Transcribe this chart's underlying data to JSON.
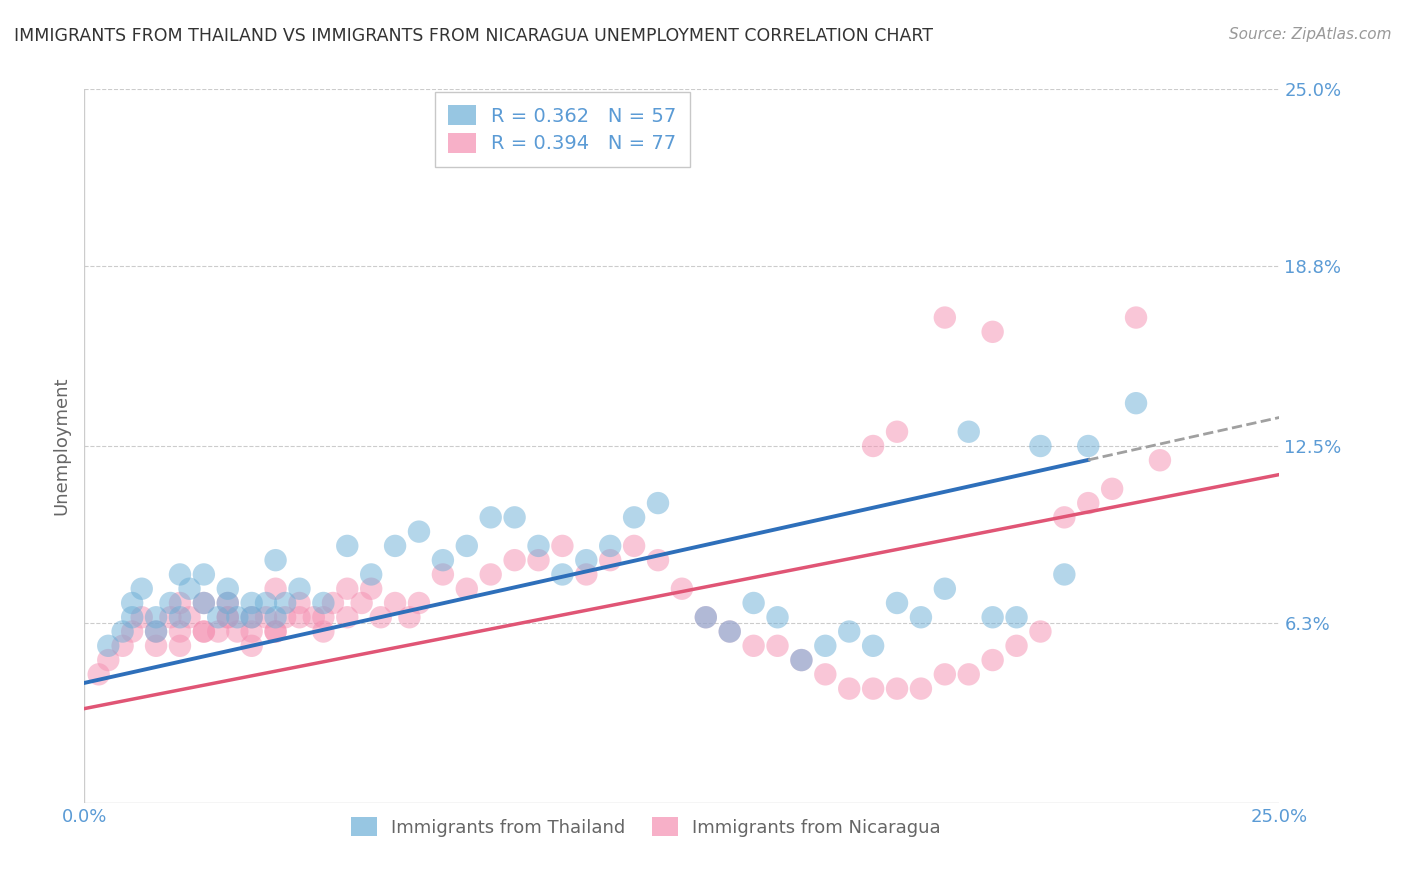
{
  "title": "IMMIGRANTS FROM THAILAND VS IMMIGRANTS FROM NICARAGUA UNEMPLOYMENT CORRELATION CHART",
  "source": "Source: ZipAtlas.com",
  "ylabel": "Unemployment",
  "series1_label": "Immigrants from Thailand",
  "series1_color": "#6baed6",
  "series1_R": "0.362",
  "series1_N": "57",
  "series2_label": "Immigrants from Nicaragua",
  "series2_color": "#f48fb1",
  "series2_R": "0.394",
  "series2_N": "77",
  "xmin": 0.0,
  "xmax": 0.25,
  "ymin": 0.0,
  "ymax": 0.25,
  "ytick_vals": [
    0.0,
    0.063,
    0.125,
    0.188,
    0.25
  ],
  "ytick_labels": [
    "",
    "6.3%",
    "12.5%",
    "18.8%",
    "25.0%"
  ],
  "xtick_vals": [
    0.0,
    0.25
  ],
  "xtick_labels": [
    "0.0%",
    "25.0%"
  ],
  "background_color": "#ffffff",
  "grid_color": "#cccccc",
  "title_color": "#333333",
  "axis_label_color": "#666666",
  "tick_label_color": "#5b9bd5",
  "legend_r_color": "#5b9bd5",
  "series1_scatter_x": [
    0.005,
    0.008,
    0.01,
    0.01,
    0.012,
    0.015,
    0.015,
    0.018,
    0.02,
    0.02,
    0.022,
    0.025,
    0.025,
    0.028,
    0.03,
    0.03,
    0.032,
    0.035,
    0.035,
    0.038,
    0.04,
    0.04,
    0.042,
    0.045,
    0.05,
    0.055,
    0.06,
    0.065,
    0.07,
    0.075,
    0.08,
    0.085,
    0.09,
    0.095,
    0.1,
    0.105,
    0.11,
    0.115,
    0.12,
    0.13,
    0.135,
    0.14,
    0.145,
    0.15,
    0.155,
    0.16,
    0.165,
    0.17,
    0.175,
    0.18,
    0.185,
    0.19,
    0.195,
    0.2,
    0.205,
    0.21,
    0.22
  ],
  "series1_scatter_y": [
    0.055,
    0.06,
    0.065,
    0.07,
    0.075,
    0.06,
    0.065,
    0.07,
    0.065,
    0.08,
    0.075,
    0.07,
    0.08,
    0.065,
    0.07,
    0.075,
    0.065,
    0.07,
    0.065,
    0.07,
    0.065,
    0.085,
    0.07,
    0.075,
    0.07,
    0.09,
    0.08,
    0.09,
    0.095,
    0.085,
    0.09,
    0.1,
    0.1,
    0.09,
    0.08,
    0.085,
    0.09,
    0.1,
    0.105,
    0.065,
    0.06,
    0.07,
    0.065,
    0.05,
    0.055,
    0.06,
    0.055,
    0.07,
    0.065,
    0.075,
    0.13,
    0.065,
    0.065,
    0.125,
    0.08,
    0.125,
    0.14
  ],
  "series2_scatter_x": [
    0.003,
    0.005,
    0.008,
    0.01,
    0.012,
    0.015,
    0.015,
    0.018,
    0.02,
    0.02,
    0.022,
    0.025,
    0.025,
    0.028,
    0.03,
    0.03,
    0.032,
    0.035,
    0.035,
    0.038,
    0.04,
    0.04,
    0.042,
    0.045,
    0.048,
    0.05,
    0.052,
    0.055,
    0.058,
    0.06,
    0.062,
    0.065,
    0.068,
    0.07,
    0.075,
    0.08,
    0.085,
    0.09,
    0.095,
    0.1,
    0.105,
    0.11,
    0.115,
    0.12,
    0.125,
    0.13,
    0.135,
    0.14,
    0.145,
    0.15,
    0.155,
    0.16,
    0.165,
    0.17,
    0.175,
    0.18,
    0.185,
    0.19,
    0.195,
    0.2,
    0.205,
    0.21,
    0.215,
    0.22,
    0.225,
    0.165,
    0.17,
    0.18,
    0.19,
    0.02,
    0.025,
    0.03,
    0.035,
    0.04,
    0.045,
    0.05,
    0.055
  ],
  "series2_scatter_y": [
    0.045,
    0.05,
    0.055,
    0.06,
    0.065,
    0.055,
    0.06,
    0.065,
    0.06,
    0.07,
    0.065,
    0.06,
    0.07,
    0.06,
    0.065,
    0.07,
    0.06,
    0.065,
    0.06,
    0.065,
    0.06,
    0.075,
    0.065,
    0.07,
    0.065,
    0.065,
    0.07,
    0.075,
    0.07,
    0.075,
    0.065,
    0.07,
    0.065,
    0.07,
    0.08,
    0.075,
    0.08,
    0.085,
    0.085,
    0.09,
    0.08,
    0.085,
    0.09,
    0.085,
    0.075,
    0.065,
    0.06,
    0.055,
    0.055,
    0.05,
    0.045,
    0.04,
    0.04,
    0.04,
    0.04,
    0.045,
    0.045,
    0.05,
    0.055,
    0.06,
    0.1,
    0.105,
    0.11,
    0.17,
    0.12,
    0.125,
    0.13,
    0.17,
    0.165,
    0.055,
    0.06,
    0.065,
    0.055,
    0.06,
    0.065,
    0.06,
    0.065
  ],
  "trend1_x0": 0.0,
  "trend1_y0": 0.042,
  "trend1_x1": 0.25,
  "trend1_y1": 0.135,
  "trend1_solid_end": 0.21,
  "trend2_x0": 0.0,
  "trend2_y0": 0.033,
  "trend2_x1": 0.25,
  "trend2_y1": 0.115
}
